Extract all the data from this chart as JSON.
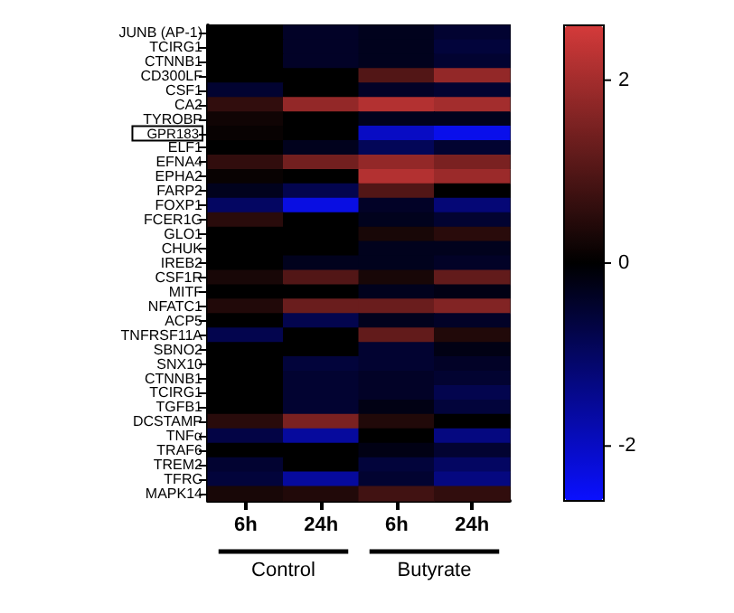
{
  "chart_data": {
    "type": "heatmap",
    "categories": [
      "6h",
      "24h",
      "6h",
      "24h"
    ],
    "y_categories": [
      "JUNB (AP-1)",
      "TCIRG1",
      "CTNNB1",
      "CD300LF",
      "CSF1",
      "CA2",
      "TYROBP",
      "GPR183",
      "ELF1",
      "EFNA4",
      "EPHA2",
      "FARP2",
      "FOXP1",
      "FCER1G",
      "GLO1",
      "CHUK",
      "IREB2",
      "CSF1R",
      "MITF",
      "NFATC1",
      "ACP5",
      "TNFRSF11A",
      "SBNO2",
      "SNX10",
      "CTNNB1",
      "TCIRG1",
      "TGFB1",
      "DCSTAMP",
      "TNFα",
      "TRAF6",
      "TREM2",
      "TFRC",
      "MAPK14"
    ],
    "cells": [
      [
        0,
        -0.4,
        -0.3,
        -0.5
      ],
      [
        0,
        -0.4,
        -0.3,
        -0.6
      ],
      [
        0,
        -0.4,
        -0.3,
        -0.5
      ],
      [
        0,
        0,
        1.0,
        1.8
      ],
      [
        -0.5,
        0,
        -0.4,
        -0.5
      ],
      [
        0.6,
        1.8,
        2.2,
        2.0
      ],
      [
        0.2,
        0,
        -0.3,
        -0.3
      ],
      [
        0.1,
        0,
        -2.0,
        -2.4
      ],
      [
        0,
        -0.3,
        -0.9,
        -0.5
      ],
      [
        0.6,
        1.4,
        1.8,
        1.5
      ],
      [
        0.1,
        0,
        2.2,
        1.9
      ],
      [
        -0.3,
        -0.8,
        1.0,
        0
      ],
      [
        -1.0,
        -2.3,
        -0.4,
        -1.2
      ],
      [
        0.5,
        0,
        -0.3,
        -0.5
      ],
      [
        0,
        0,
        0.3,
        0.5
      ],
      [
        0,
        0,
        -0.3,
        -0.3
      ],
      [
        0,
        -0.3,
        -0.3,
        -0.4
      ],
      [
        0.3,
        1.0,
        0.3,
        1.2
      ],
      [
        0,
        0,
        -0.3,
        -0.2
      ],
      [
        0.4,
        1.3,
        1.3,
        1.6
      ],
      [
        0,
        -0.8,
        -0.3,
        -0.4
      ],
      [
        -0.8,
        0,
        1.2,
        0.4
      ],
      [
        0,
        0,
        -0.5,
        -0.2
      ],
      [
        0,
        -0.6,
        -0.5,
        -0.4
      ],
      [
        0,
        -0.5,
        -0.4,
        -0.5
      ],
      [
        0,
        -0.5,
        -0.4,
        -0.8
      ],
      [
        0,
        -0.5,
        -0.2,
        -0.6
      ],
      [
        0.5,
        1.5,
        0.4,
        0
      ],
      [
        -0.7,
        -1.6,
        0,
        -1.3
      ],
      [
        0,
        0,
        -0.2,
        -0.5
      ],
      [
        -0.5,
        0,
        -0.6,
        -1.0
      ],
      [
        -0.6,
        -1.6,
        -0.5,
        -1.3
      ],
      [
        0.3,
        0.4,
        0.8,
        0.6
      ]
    ],
    "clim": [
      -2.6,
      2.6
    ],
    "cticks": [
      -2,
      0,
      2
    ],
    "annotations": [
      "Control",
      "Butyrate"
    ]
  }
}
